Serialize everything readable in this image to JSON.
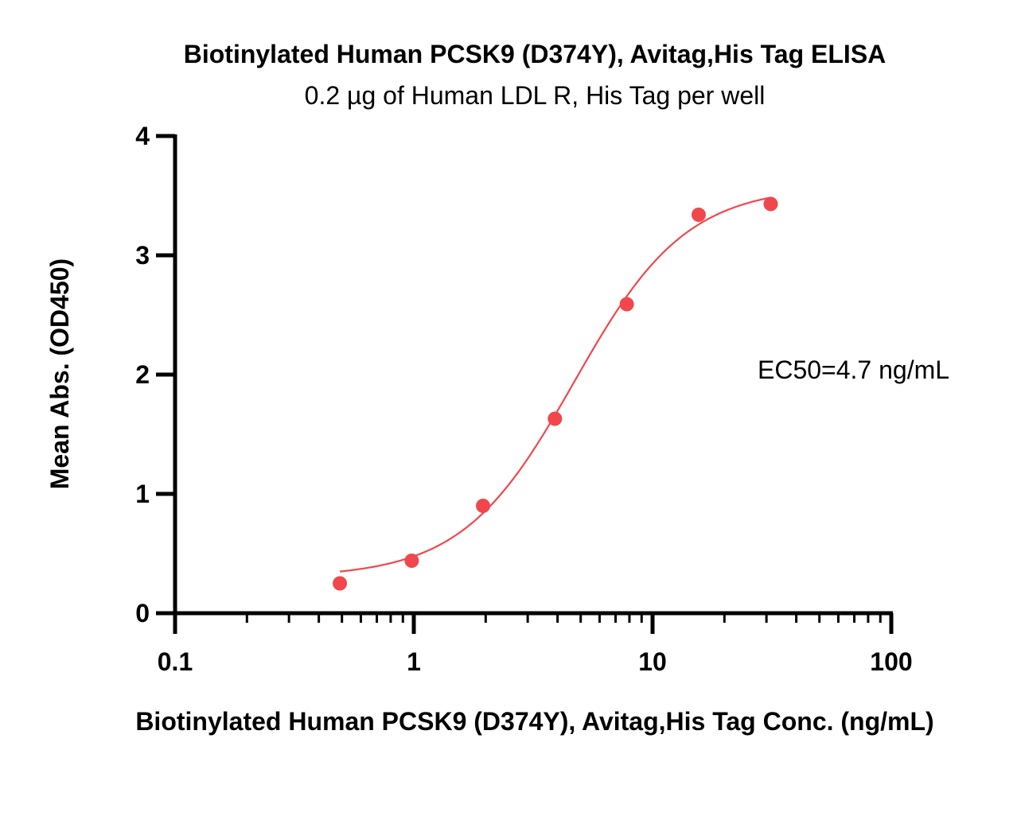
{
  "chart_data": {
    "type": "scatter",
    "title": "Biotinylated Human PCSK9 (D374Y), Avitag,His Tag ELISA",
    "subtitle": "0.2 µg of Human LDL R, His Tag per well",
    "xlabel": "Biotinylated Human PCSK9 (D374Y), Avitag,His Tag Conc. (ng/mL)",
    "ylabel": "Mean Abs. (OD450)",
    "x_scale": "log",
    "xlim": [
      0.1,
      100
    ],
    "ylim": [
      0,
      4
    ],
    "x_ticks": [
      0.1,
      1,
      10,
      100
    ],
    "x_tick_labels": [
      "0.1",
      "1",
      "10",
      "100"
    ],
    "y_ticks": [
      0,
      1,
      2,
      3,
      4
    ],
    "y_tick_labels": [
      "0",
      "1",
      "2",
      "3",
      "4"
    ],
    "grid": false,
    "series": [
      {
        "color": "#f0474d",
        "x": [
          0.49,
          0.98,
          1.95,
          3.9,
          7.8,
          15.6,
          31.25
        ],
        "y": [
          0.25,
          0.44,
          0.9,
          1.63,
          2.59,
          3.34,
          3.43
        ],
        "fit": {
          "model": "4PL",
          "bottom": 0.3,
          "top": 3.58,
          "ec50": 4.7,
          "hill": 1.85,
          "x_range": [
            0.49,
            31.25
          ]
        }
      }
    ],
    "annotation": "EC50=4.7 ng/mL"
  }
}
